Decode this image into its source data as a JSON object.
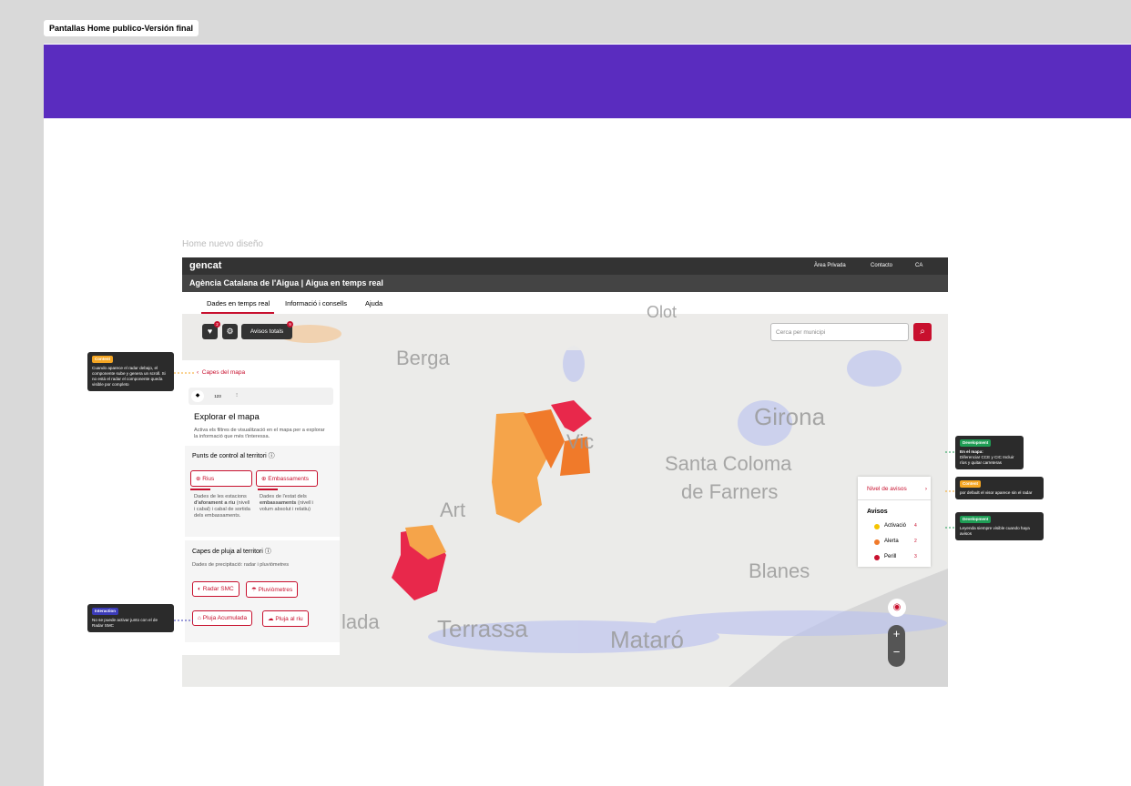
{
  "canvas": {
    "frame_label": "Pantallas Home publico-Versión final",
    "screen_label": "Home nuevo diseño"
  },
  "header": {
    "brand": "gencat",
    "links": [
      "Àrea Privada",
      "Contacto",
      "CA"
    ],
    "title": "Agència Catalana de l'Aigua | Aigua en temps real"
  },
  "tabs": [
    "Dades en temps real",
    "Informació i consells",
    "Ajuda"
  ],
  "toolbar": {
    "favorites_badge": "2",
    "alerts_button": "Avisos totals",
    "alerts_badge": "9",
    "search_placeholder": "Cerca per municipi"
  },
  "map": {
    "places": [
      "Olot",
      "Berga",
      "Girona",
      "Vic",
      "Santa Coloma",
      "de Farners",
      "Art",
      "Blanes",
      "lada",
      "Terrassa",
      "Mataró"
    ]
  },
  "panel": {
    "back": "Capes del mapa",
    "tab_numbers": "123",
    "title": "Explorar el mapa",
    "intro": "Activa els filtres de visualització en el mapa per a explorar la informació que més t'interessa.",
    "section1": {
      "title": "Punts de control al territori",
      "buttons": [
        "Rius",
        "Embassaments"
      ],
      "desc1": {
        "a": "Dades de les estacions ",
        "b": "d'aforament a riu",
        "c": " (nivell i cabal) i cabal de sortida dels embassaments."
      },
      "desc2": {
        "a": "Dades de l'estat dels ",
        "b": "embassaments",
        "c": " (nivell i volum absolut i relatiu)"
      }
    },
    "section2": {
      "title": "Capes de pluja al territori",
      "subtitle": "Dades de precipitació: radar i pluviòmetres",
      "buttons": [
        "Radar SMC",
        "Pluviòmetres",
        "Pluja Acumulada",
        "Pluja al riu"
      ]
    }
  },
  "legend": {
    "title": "Nivel de avisos",
    "heading": "Avisos",
    "items": [
      {
        "label": "Activació",
        "count": "4"
      },
      {
        "label": "Alerta",
        "count": "2"
      },
      {
        "label": "Perill",
        "count": "3"
      }
    ]
  },
  "notes": [
    {
      "tag": "Content",
      "text": "Cuando aparece el radar debajo, el componente sube y genera un scroll. Si no está el radar el componente queda visible por completo"
    },
    {
      "tag": "Interaction",
      "text": "No se puede activar junto con el de Radar SMC"
    },
    {
      "tag": "Development",
      "bold": "En el mapa:",
      "text": "Diferenciar CCE y CIC Incluir ríos y quitar carreteras"
    },
    {
      "tag": "Content",
      "text": "por default el visor aparece sin el radar"
    },
    {
      "tag": "Development",
      "text": "Leyenda siempre visible cuando haya avisos"
    }
  ]
}
